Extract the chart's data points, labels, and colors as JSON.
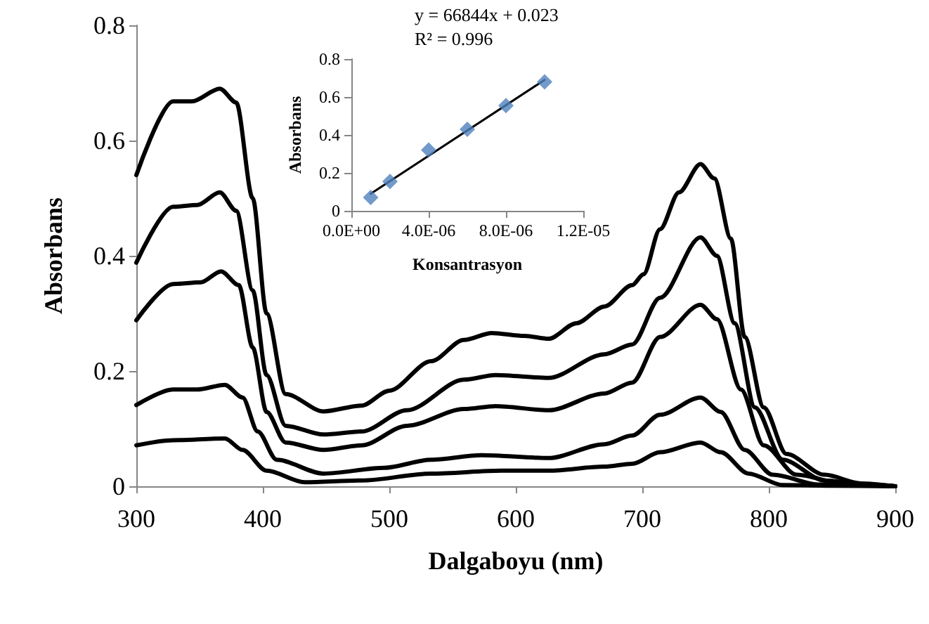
{
  "chart_data": [
    {
      "type": "line",
      "xlabel": "Dalgaboyu (nm)",
      "ylabel": "Absorbans",
      "xlim": [
        300,
        900
      ],
      "xticks": [
        300,
        400,
        500,
        600,
        700,
        800,
        900
      ],
      "ylim": [
        0,
        0.8
      ],
      "yticks": [
        0,
        0.2,
        0.4,
        0.6,
        0.8
      ],
      "grid": false,
      "marker": "none",
      "line_style": "solid",
      "series": [
        {
          "color": "#000000",
          "x": [
            300,
            329,
            344,
            366,
            379,
            392,
            403,
            418,
            448,
            478,
            500,
            533,
            559,
            581,
            607,
            626,
            648,
            670,
            692,
            701,
            714,
            729,
            746,
            757,
            770,
            781,
            796,
            814,
            844,
            873,
            900
          ],
          "values": [
            0.54,
            0.668,
            0.668,
            0.69,
            0.666,
            0.5,
            0.3,
            0.16,
            0.13,
            0.14,
            0.166,
            0.217,
            0.254,
            0.266,
            0.261,
            0.256,
            0.283,
            0.312,
            0.349,
            0.368,
            0.446,
            0.51,
            0.559,
            0.534,
            0.43,
            0.259,
            0.137,
            0.056,
            0.02,
            0.005,
            0
          ]
        },
        {
          "color": "#000000",
          "x": [
            300,
            329,
            348,
            366,
            379,
            392,
            403,
            418,
            448,
            478,
            514,
            559,
            584,
            626,
            670,
            692,
            714,
            746,
            759,
            773,
            789,
            811,
            844,
            873,
            900
          ],
          "values": [
            0.388,
            0.485,
            0.488,
            0.51,
            0.478,
            0.34,
            0.193,
            0.105,
            0.09,
            0.095,
            0.132,
            0.185,
            0.193,
            0.188,
            0.229,
            0.246,
            0.327,
            0.432,
            0.4,
            0.283,
            0.137,
            0.046,
            0.01,
            0.004,
            0
          ]
        },
        {
          "color": "#000000",
          "x": [
            300,
            329,
            351,
            367,
            381,
            392,
            403,
            418,
            448,
            478,
            514,
            559,
            584,
            626,
            670,
            692,
            714,
            746,
            759,
            778,
            796,
            822,
            860,
            900
          ],
          "values": [
            0.288,
            0.351,
            0.354,
            0.373,
            0.349,
            0.241,
            0.129,
            0.076,
            0.063,
            0.071,
            0.105,
            0.134,
            0.139,
            0.132,
            0.161,
            0.18,
            0.259,
            0.315,
            0.29,
            0.168,
            0.071,
            0.02,
            0.004,
            0
          ]
        },
        {
          "color": "#000000",
          "x": [
            300,
            329,
            348,
            370,
            384,
            396,
            411,
            448,
            496,
            533,
            573,
            626,
            670,
            692,
            714,
            746,
            762,
            781,
            803,
            840,
            900
          ],
          "values": [
            0.141,
            0.168,
            0.168,
            0.176,
            0.154,
            0.095,
            0.046,
            0.022,
            0.032,
            0.046,
            0.054,
            0.049,
            0.073,
            0.088,
            0.124,
            0.154,
            0.129,
            0.063,
            0.02,
            0.003,
            0
          ]
        },
        {
          "color": "#000000",
          "x": [
            300,
            329,
            370,
            384,
            403,
            433,
            478,
            533,
            589,
            626,
            670,
            692,
            714,
            746,
            762,
            784,
            811,
            850,
            900
          ],
          "values": [
            0.071,
            0.08,
            0.083,
            0.063,
            0.027,
            0.007,
            0.01,
            0.022,
            0.027,
            0.027,
            0.034,
            0.039,
            0.059,
            0.076,
            0.059,
            0.022,
            0.002,
            0.001,
            0
          ]
        }
      ]
    },
    {
      "type": "scatter",
      "xlabel": "Konsantrasyon",
      "ylabel": "Absorbans",
      "xlim": [
        0,
        1.2e-05
      ],
      "xticks": [
        {
          "value": 0,
          "label": "0.0E+00"
        },
        {
          "value": 4e-06,
          "label": "4.0E-06"
        },
        {
          "value": 8e-06,
          "label": "8.0E-06"
        },
        {
          "value": 1.2e-05,
          "label": "1.2E-05"
        }
      ],
      "ylim": [
        0,
        0.8
      ],
      "yticks": [
        0,
        0.2,
        0.4,
        0.6,
        0.8
      ],
      "grid": false,
      "annotations": [
        "y = 66844x + 0.023",
        "R² = 0.996"
      ],
      "series": [
        {
          "color": "#4f81bd",
          "marker": "diamond",
          "x": [
            1e-06,
            2e-06,
            4e-06,
            6e-06,
            8e-06,
            1e-05
          ],
          "values": [
            0.07,
            0.155,
            0.32,
            0.43,
            0.555,
            0.68
          ]
        },
        {
          "type": "line",
          "color": "#000000",
          "marker": "none",
          "line_style": "solid",
          "x": [
            1e-06,
            1e-05
          ],
          "values": [
            0.09,
            0.69
          ]
        }
      ]
    }
  ]
}
